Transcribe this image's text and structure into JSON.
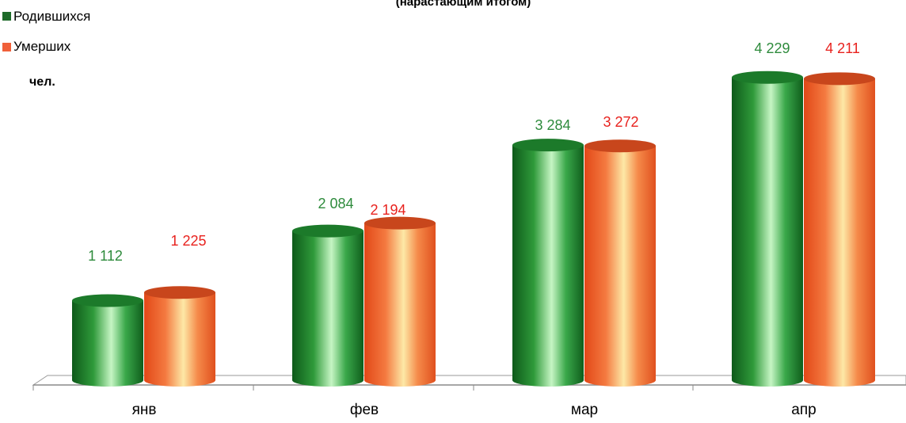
{
  "chart_data": {
    "type": "bar",
    "subtitle": "(нарастающим итогом)",
    "unit_label": "чел.",
    "categories": [
      "янв",
      "фев",
      "мар",
      "апр"
    ],
    "series": [
      {
        "name": "Родившихся",
        "values": [
          1112,
          2084,
          3284,
          4229
        ],
        "labels": [
          "1 112",
          "2 084",
          "3 284",
          "4 229"
        ],
        "color": "#1e7a2e",
        "label_color": "#2e8b3c"
      },
      {
        "name": "Умерших",
        "values": [
          1225,
          2194,
          3272,
          4211
        ],
        "labels": [
          "1 225",
          "2 194",
          "3 272",
          "4 211"
        ],
        "color": "#f0603a",
        "label_color": "#e8221e"
      }
    ],
    "legend_position": "top-left",
    "grid": false
  }
}
